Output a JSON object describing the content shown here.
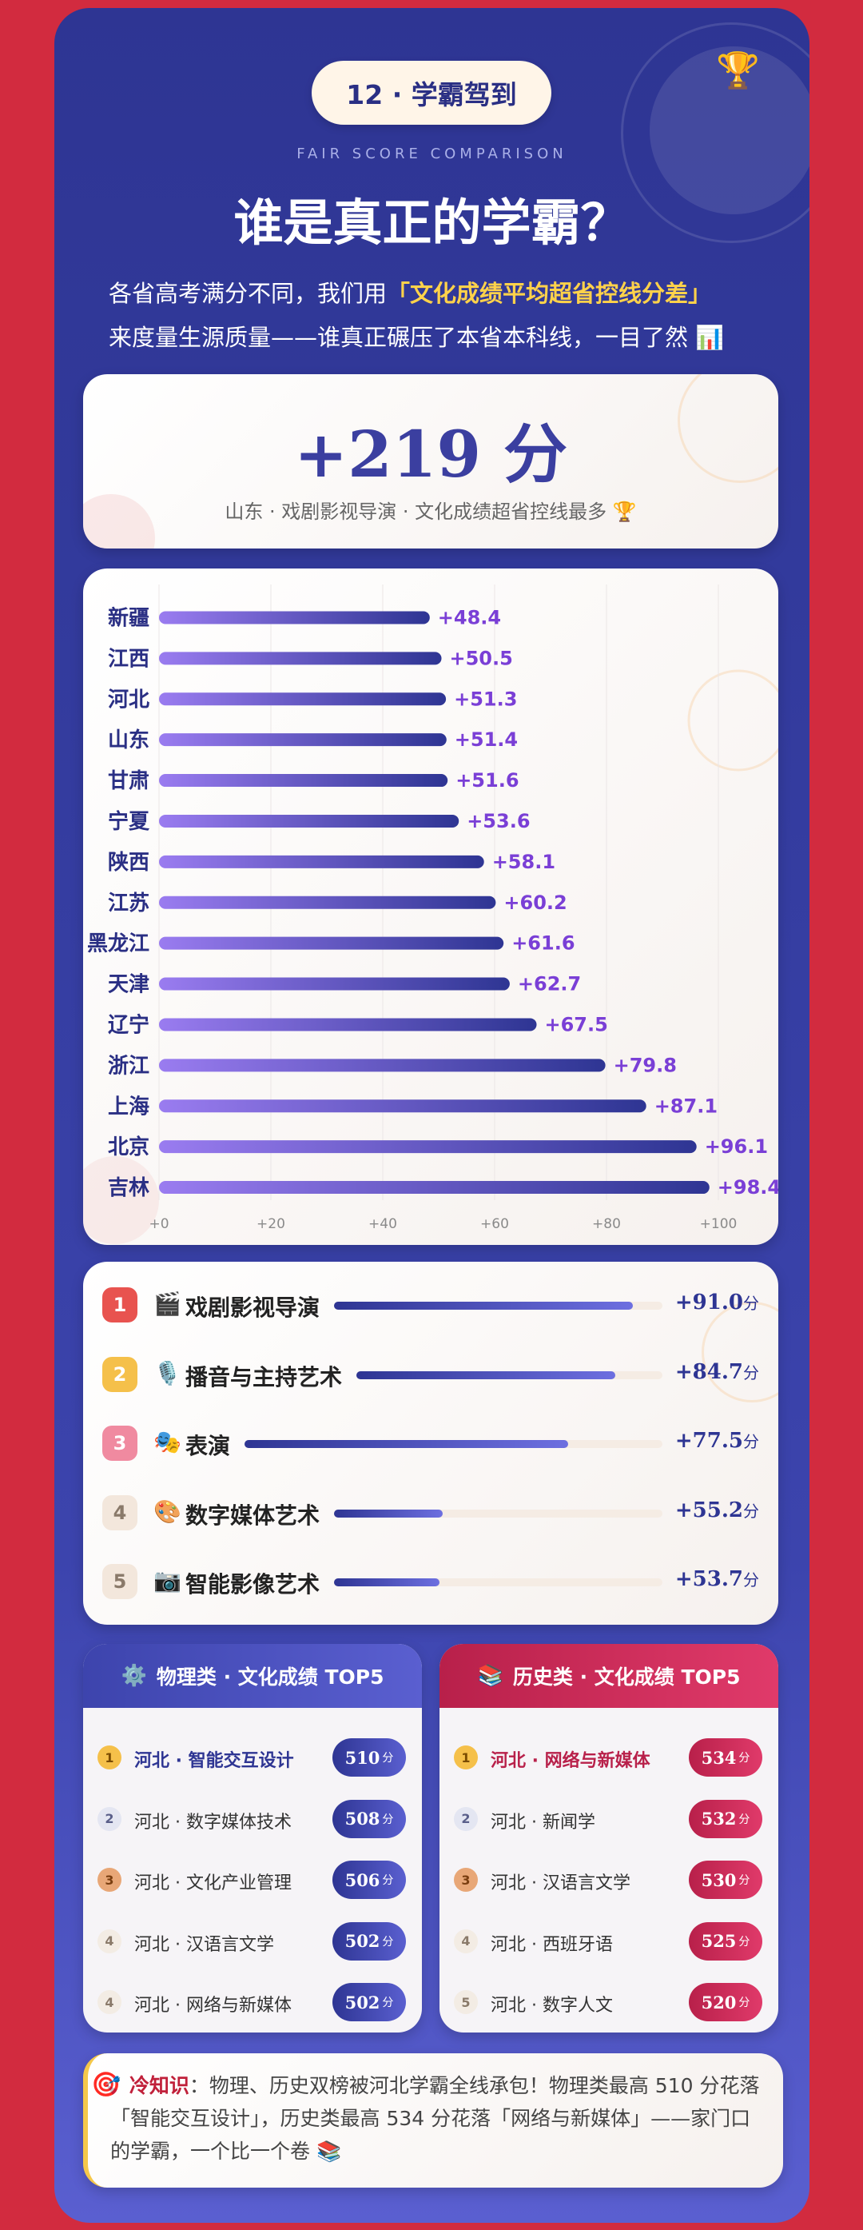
{
  "header": {
    "badge": "12 · 学霸驾到",
    "subtitle_en": "FAIR SCORE COMPARISON",
    "title": "谁是真正的学霸？",
    "intro_line1_pre": "各省高考满分不同，我们用",
    "intro_highlight": "「文化成绩平均超省控线分差」",
    "intro_line2": "来度量生源质量——谁真正碾压了本省本科线，一目了然 📊",
    "trophy_icon": "🏆"
  },
  "hero": {
    "value": "+219 分",
    "caption": "山东 · 戏剧影视导演 · 文化成绩超省控线最多 🏆"
  },
  "chart_data": {
    "type": "bar",
    "orientation": "horizontal",
    "categories": [
      "新疆",
      "江西",
      "河北",
      "山东",
      "甘肃",
      "宁夏",
      "陕西",
      "江苏",
      "黑龙江",
      "天津",
      "辽宁",
      "浙江",
      "上海",
      "北京",
      "吉林"
    ],
    "values": [
      48.4,
      50.5,
      51.3,
      51.4,
      51.6,
      53.6,
      58.1,
      60.2,
      61.6,
      62.7,
      67.5,
      79.8,
      87.1,
      96.1,
      98.4
    ],
    "value_labels": [
      "+48.4",
      "+50.5",
      "+51.3",
      "+51.4",
      "+51.6",
      "+53.6",
      "+58.1",
      "+60.2",
      "+61.6",
      "+62.7",
      "+67.5",
      "+79.8",
      "+87.1",
      "+96.1",
      "+98.4"
    ],
    "xlim": [
      0,
      100
    ],
    "xticks": [
      0,
      20,
      40,
      60,
      80,
      100
    ],
    "xtick_labels": [
      "+0",
      "+20",
      "+40",
      "+60",
      "+80",
      "+100"
    ],
    "grid": true,
    "bar_color_start": "#9a7cf0",
    "bar_color_end": "#2e3593",
    "label_color": "#7a3fd6"
  },
  "ranking": {
    "max": 100,
    "items": [
      {
        "rank": "1",
        "icon": "🎬",
        "name": "戏剧影视导演",
        "value": 91.0,
        "value_label": "+91.0",
        "unit": "分",
        "badge_color": "#e8534f"
      },
      {
        "rank": "2",
        "icon": "🎙️",
        "name": "播音与主持艺术",
        "value": 84.7,
        "value_label": "+84.7",
        "unit": "分",
        "badge_color": "#f5c04a"
      },
      {
        "rank": "3",
        "icon": "🎭",
        "name": "表演",
        "value": 77.5,
        "value_label": "+77.5",
        "unit": "分",
        "badge_color": "#f08aa0"
      },
      {
        "rank": "4",
        "icon": "🎨",
        "name": "数字媒体艺术",
        "value": 55.2,
        "value_label": "+55.2",
        "unit": "分",
        "badge_color": "#f3e7dc"
      },
      {
        "rank": "5",
        "icon": "📷",
        "name": "智能影像艺术",
        "value": 53.7,
        "value_label": "+53.7",
        "unit": "分",
        "badge_color": "#f3e7dc"
      }
    ]
  },
  "physics_top5": {
    "icon": "⚙️",
    "title": "物理类 · 文化成绩 TOP5",
    "unit": "分",
    "items": [
      {
        "rank": "1",
        "name": "河北 · 智能交互设计",
        "score": "510"
      },
      {
        "rank": "2",
        "name": "河北 · 数字媒体技术",
        "score": "508"
      },
      {
        "rank": "3",
        "name": "河北 · 文化产业管理",
        "score": "506"
      },
      {
        "rank": "4",
        "name": "河北 · 汉语言文学",
        "score": "502"
      },
      {
        "rank": "4",
        "name": "河北 · 网络与新媒体",
        "score": "502"
      }
    ]
  },
  "history_top5": {
    "icon": "📚",
    "title": "历史类 · 文化成绩 TOP5",
    "unit": "分",
    "items": [
      {
        "rank": "1",
        "name": "河北 · 网络与新媒体",
        "score": "534"
      },
      {
        "rank": "2",
        "name": "河北 · 新闻学",
        "score": "532"
      },
      {
        "rank": "3",
        "name": "河北 · 汉语言文学",
        "score": "530"
      },
      {
        "rank": "4",
        "name": "河北 · 西班牙语",
        "score": "525"
      },
      {
        "rank": "5",
        "name": "河北 · 数字人文",
        "score": "520"
      }
    ]
  },
  "top5_badge_colors": [
    "#f5c04a",
    "#e4e6f2",
    "#e8a777",
    "#f3ece4",
    "#f3ece4"
  ],
  "top5_badge_text_colors": [
    "#7a4b00",
    "#5a5f8a",
    "#7a3e10",
    "#8a7a6a",
    "#8a7a6a"
  ],
  "tip": {
    "icon": "🎯",
    "lead": "冷知识",
    "text": "：物理、历史双榜被河北学霸全线承包！物理类最高 510 分花落「智能交互设计」，历史类最高 534 分花落「网络与新媒体」——家门口的学霸，一个比一个卷 📚"
  }
}
